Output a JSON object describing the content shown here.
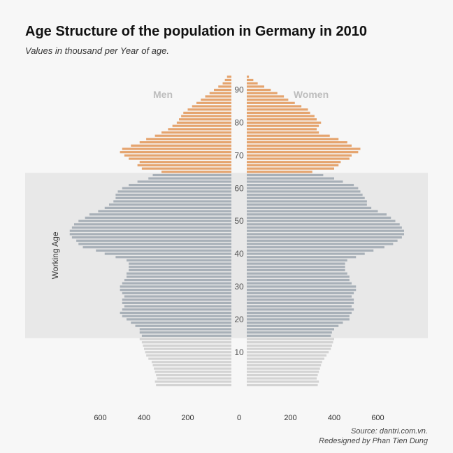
{
  "title": "Age Structure of the population in Germany in 2010",
  "subtitle": "Values in thousand per Year of age.",
  "source": "Source: dantri.com.vn.",
  "credit": "Redesigned by Phan Tien Dung",
  "chart_data": {
    "type": "bar",
    "orientation": "horizontal-population-pyramid",
    "ages": [
      0,
      1,
      2,
      3,
      4,
      5,
      6,
      7,
      8,
      9,
      10,
      11,
      12,
      13,
      14,
      15,
      16,
      17,
      18,
      19,
      20,
      21,
      22,
      23,
      24,
      25,
      26,
      27,
      28,
      29,
      30,
      31,
      32,
      33,
      34,
      35,
      36,
      37,
      38,
      39,
      40,
      41,
      42,
      43,
      44,
      45,
      46,
      47,
      48,
      49,
      50,
      51,
      52,
      53,
      54,
      55,
      56,
      57,
      58,
      59,
      60,
      61,
      62,
      63,
      64,
      65,
      66,
      67,
      68,
      69,
      70,
      71,
      72,
      73,
      74,
      75,
      76,
      77,
      78,
      79,
      80,
      81,
      82,
      83,
      84,
      85,
      86,
      87,
      88,
      89,
      90,
      91,
      92,
      93,
      94
    ],
    "series": [
      {
        "name": "Men",
        "values": [
          345,
          350,
          340,
          345,
          350,
          355,
          360,
          365,
          380,
          390,
          395,
          400,
          405,
          410,
          420,
          410,
          420,
          420,
          440,
          460,
          480,
          500,
          510,
          500,
          490,
          500,
          500,
          490,
          500,
          510,
          510,
          500,
          490,
          480,
          480,
          470,
          470,
          470,
          480,
          530,
          580,
          620,
          680,
          700,
          710,
          730,
          740,
          740,
          730,
          720,
          700,
          670,
          650,
          610,
          580,
          560,
          540,
          530,
          530,
          520,
          500,
          470,
          430,
          380,
          360,
          320,
          410,
          430,
          420,
          470,
          490,
          510,
          500,
          460,
          420,
          390,
          350,
          320,
          290,
          270,
          250,
          240,
          230,
          220,
          200,
          180,
          160,
          140,
          120,
          100,
          80,
          60,
          40,
          30,
          20
        ],
        "color": "#a8b0b8"
      },
      {
        "name": "Women",
        "values": [
          325,
          330,
          320,
          325,
          330,
          335,
          340,
          345,
          355,
          365,
          375,
          385,
          390,
          395,
          400,
          385,
          390,
          400,
          420,
          440,
          470,
          470,
          480,
          490,
          480,
          490,
          490,
          480,
          490,
          500,
          500,
          480,
          470,
          470,
          460,
          450,
          450,
          450,
          460,
          500,
          540,
          580,
          630,
          670,
          690,
          710,
          720,
          720,
          710,
          700,
          680,
          660,
          640,
          600,
          570,
          550,
          550,
          540,
          530,
          520,
          510,
          490,
          440,
          400,
          350,
          300,
          400,
          420,
          430,
          470,
          480,
          510,
          520,
          480,
          460,
          420,
          380,
          330,
          320,
          330,
          340,
          320,
          310,
          290,
          280,
          250,
          220,
          190,
          170,
          140,
          110,
          80,
          50,
          30,
          10
        ],
        "color": "#e5a46e"
      }
    ],
    "working_age_range": [
      15,
      64
    ],
    "band_label": "Working Age",
    "colors": {
      "retired": "#e5a46e",
      "working": "#a8b0b8",
      "young": "#d3d3d3",
      "band": "#e8e8e8"
    },
    "x_ticks": [
      600,
      400,
      200,
      0,
      200,
      400,
      600
    ],
    "y_ticks": [
      10,
      20,
      30,
      40,
      50,
      60,
      70,
      80,
      90
    ],
    "xlim": [
      -700,
      700
    ],
    "ylim": [
      0,
      94
    ],
    "legend": [
      "Men",
      "Women"
    ],
    "legend_placement": "top, either side of the axis"
  }
}
